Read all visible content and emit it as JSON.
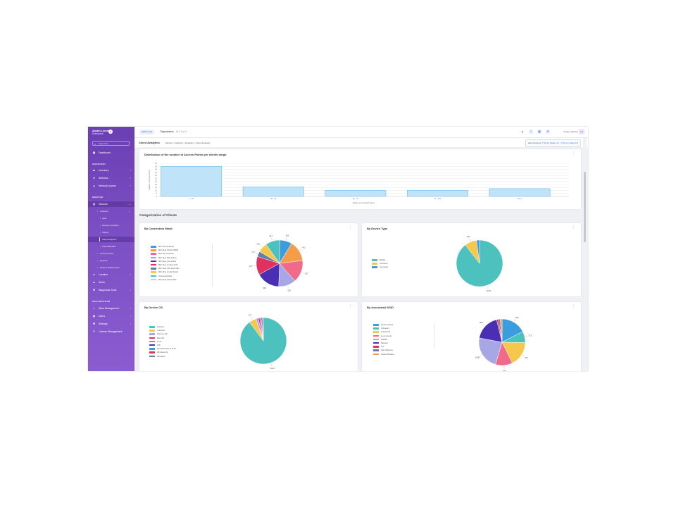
{
  "sidebar": {
    "brand": "Alcatel-Lucent",
    "brand_sub": "Enterprise",
    "search_placeholder": "Search for",
    "items_top": [
      {
        "label": "Dashboard",
        "icon": "dashboard-icon"
      }
    ],
    "section_inventory": "INVENTORY",
    "items_inventory": [
      {
        "label": "Inventory",
        "icon": "inventory-icon"
      },
      {
        "label": "Wireless",
        "icon": "wifi-icon"
      },
      {
        "label": "Network Access",
        "icon": "network-access-icon"
      }
    ],
    "section_monitor": "MONITOR",
    "network": {
      "label": "Network",
      "icon": "network-icon"
    },
    "analytics": "Analytics",
    "analytics_sub": [
      "QoE",
      "Network Analytics",
      "Clients",
      "Client Analytics",
      "Client Blocklist"
    ],
    "network_sub2": [
      "Access Points",
      "Reports",
      "Custom Dashboards"
    ],
    "items_monitor2": [
      {
        "label": "Location",
        "icon": "location-icon"
      },
      {
        "label": "Alerts",
        "icon": "alert-icon"
      },
      {
        "label": "Diagnostic Tools",
        "icon": "tools-icon"
      }
    ],
    "section_org": "ORGANIZATION",
    "items_org": [
      {
        "label": "Sites Management",
        "icon": "site-icon"
      },
      {
        "label": "Users",
        "icon": "users-icon"
      },
      {
        "label": "Settings",
        "icon": "gear-icon"
      },
      {
        "label": "License Management",
        "icon": "license-icon"
      }
    ]
  },
  "topbar": {
    "pill": "MSP Portal",
    "org_label": "Organization",
    "org_value": "ALE Ltd ▾",
    "username": "Usage statistics",
    "avatar": "A A"
  },
  "page": {
    "title": "Client Analytics",
    "breadcrumb": "Monitor > Network > Analytics > Client Analytics",
    "range_prefix": "Last 24 Hours",
    "range_value": "7:52 pm (Date 12) ~ 7:52 pm (Date 13)"
  },
  "section_title": "Categorization of Clients",
  "colors": {
    "teal": "#4dc1bd",
    "blue": "#3b9de0",
    "yellow": "#f5c84c",
    "orange": "#f39c4a",
    "pink": "#f06a8a",
    "lavender": "#a7a6e6",
    "indigo": "#4a2fb5",
    "crimson": "#e0325f",
    "slate": "#5f7ea8",
    "lightblue": "#aad8f2"
  },
  "chart_data": [
    {
      "type": "bar",
      "title": "Distribution of the number of Access Points per clients range",
      "xlabel": "Range of connected clients",
      "ylabel": "Number of Access Points",
      "categories": [
        "1 - 25",
        "26 - 50",
        "51 - 75",
        "76 - 100",
        "101+"
      ],
      "values": [
        50,
        16,
        10,
        10,
        13
      ],
      "ylim": [
        0,
        55
      ],
      "yticks": [
        0,
        5,
        10,
        15,
        20,
        25,
        30,
        35,
        40,
        45,
        50,
        55
      ],
      "grid": true
    },
    {
      "type": "pie",
      "title": "By Connection Mode",
      "legend": [
        "802.11a (5.4GHz)",
        "802.11ac (5GHz-Wifi5)",
        "802.11b (2.4GHz)",
        "802.11ac (5G-11AC)",
        "802.11ax (5G-11AX)",
        "802.11ax (2.4G-11AX)",
        "802.11ax (5G-11AX-6E)",
        "802.11ax (2.4G-6GHz)",
        "Unknown/Other",
        "802.11ax (6GHz-6E)"
      ],
      "slices": [
        {
          "label": "282",
          "value": 282,
          "color": "#3b9de0"
        },
        {
          "label": "472",
          "value": 472,
          "color": "#f39c4a"
        },
        {
          "label": "507",
          "value": 507,
          "color": "#f06a8a"
        },
        {
          "label": "393",
          "value": 393,
          "color": "#a7a6e6"
        },
        {
          "label": "536",
          "value": 536,
          "color": "#4a2fb5"
        },
        {
          "label": "417",
          "value": 417,
          "color": "#e0325f"
        },
        {
          "label": "120",
          "value": 120,
          "color": "#5f7ea8"
        },
        {
          "label": "220",
          "value": 220,
          "color": "#f5c84c"
        },
        {
          "label": "321",
          "value": 321,
          "color": "#4dc1bd"
        }
      ]
    },
    {
      "type": "pie",
      "title": "By Device Type",
      "legend": [
        "Mobile",
        "Unknown",
        "Computer"
      ],
      "slices": [
        {
          "label": "5011",
          "value": 5011,
          "color": "#4dc1bd"
        },
        {
          "label": "466",
          "value": 466,
          "color": "#f5c84c"
        },
        {
          "label": "",
          "value": 120,
          "color": "#3b9de0"
        }
      ]
    },
    {
      "type": "pie",
      "title": "By Device OS",
      "legend": [
        "Android",
        "Unknown",
        "Chrome OS",
        "Mac OS",
        "Linux",
        "iOS",
        "Windows Phone 8/10",
        "Windows 10",
        "Windows"
      ],
      "slices": [
        {
          "label": "5012",
          "value": 5012,
          "color": "#4dc1bd"
        },
        {
          "label": "274",
          "value": 274,
          "color": "#f5c84c"
        },
        {
          "label": "",
          "value": 90,
          "color": "#a7a6e6"
        },
        {
          "label": "",
          "value": 60,
          "color": "#e0325f"
        },
        {
          "label": "",
          "value": 60,
          "color": "#f06a8a"
        },
        {
          "label": "",
          "value": 40,
          "color": "#4a2fb5"
        },
        {
          "label": "",
          "value": 40,
          "color": "#3b9de0"
        }
      ]
    },
    {
      "type": "pie",
      "title": "By Associated SSID",
      "legend": [
        "Guest Access",
        "Unknown",
        "Unknown2",
        "Lions Guest",
        "Staff42",
        "Student",
        "IoT",
        "ALE Wireless",
        "Guest Wireless"
      ],
      "slices": [
        {
          "label": "820",
          "value": 820,
          "color": "#3b9de0"
        },
        {
          "label": "371",
          "value": 371,
          "color": "#4dc1bd"
        },
        {
          "label": "821",
          "value": 821,
          "color": "#f5c84c"
        },
        {
          "label": "558",
          "value": 558,
          "color": "#f06a8a"
        },
        {
          "label": "1098",
          "value": 1098,
          "color": "#a7a6e6"
        },
        {
          "label": "858",
          "value": 858,
          "color": "#4a2fb5"
        },
        {
          "label": "",
          "value": 60,
          "color": "#e0325f"
        },
        {
          "label": "",
          "value": 60,
          "color": "#5f7ea8"
        },
        {
          "label": "",
          "value": 60,
          "color": "#f39c4a"
        }
      ]
    }
  ]
}
